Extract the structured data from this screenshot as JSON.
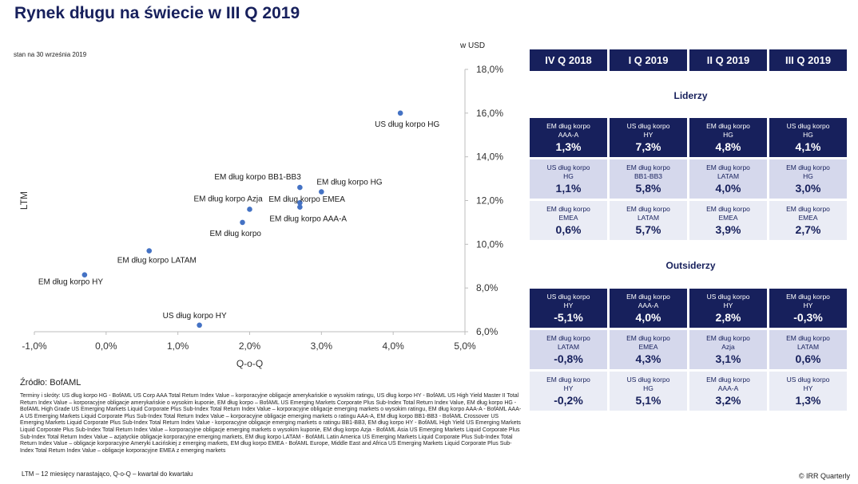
{
  "title": "Rynek długu na świecie w III Q 2019",
  "date_note": "stan na 30 września 2019",
  "unit": "w USD",
  "chart_data": {
    "type": "scatter",
    "xlabel": "Q-o-Q",
    "ylabel": "LTM",
    "xlim": [
      -1.0,
      5.0
    ],
    "ylim": [
      6.0,
      18.0
    ],
    "x_ticks": [
      "-1,0%",
      "0,0%",
      "1,0%",
      "2,0%",
      "3,0%",
      "4,0%",
      "5,0%"
    ],
    "y_ticks": [
      "6,0%",
      "8,0%",
      "10,0%",
      "12,0%",
      "14,0%",
      "16,0%",
      "18,0%"
    ],
    "grid": false,
    "points": [
      {
        "label": "US dług korpo HG",
        "x": 4.1,
        "y": 16.0
      },
      {
        "label": "EM dług korpo BB1-BB3",
        "x": 2.7,
        "y": 12.6
      },
      {
        "label": "EM dług korpo HG",
        "x": 3.0,
        "y": 12.4
      },
      {
        "label": "EM dług korpo Azja",
        "x": 2.0,
        "y": 11.6
      },
      {
        "label": "EM dług korpo EMEA",
        "x": 2.7,
        "y": 11.9
      },
      {
        "label": "EM dług korpo AAA-A",
        "x": 2.7,
        "y": 11.7
      },
      {
        "label": "EM dług korpo",
        "x": 1.9,
        "y": 11.0
      },
      {
        "label": "EM dług korpo LATAM",
        "x": 0.6,
        "y": 9.7
      },
      {
        "label": "EM dług korpo HY",
        "x": -0.3,
        "y": 8.6
      },
      {
        "label": "US dług korpo HY",
        "x": 1.3,
        "y": 6.3
      }
    ]
  },
  "source": "Źródło: BofAML",
  "terms": "Terminy i skróty: US dług korpo HG - BofAML US Corp AAA Total Return Index Value – korporacyjne obligacje amerykańskie o wysokim ratingu, US dług korpo HY - BofAML US High Yield Master II Total Return Index Value – korporacyjne obligacje amerykańskie o wysokim kuponie, EM dług korpo – BofAML US Emerging Markets Corporate Plus Sub-Index Total Return Index Value, EM dług korpo HG - BofAML High Grade US Emerging Markets Liquid Corporate Plus Sub-Index Total Return Index Value – korporacyjne obligacje emerging markets o wysokim ratingu, EM dług korpo AAA-A - BofAML AAA-A US Emerging Markets Liquid Corporate Plus Sub-Index Total Return Index Value – korporacyjne obligacje emerging markets o ratingu AAA-A, EM dług korpo BB1-BB3 - BofAML Crossover US Emerging Markets Liquid Corporate Plus Sub-Index Total Return Index Value - korporacyjne obligacje emerging markets o ratingu BB1-BB3, EM dług korpo HY - BofAML High Yield US Emerging Markets Liquid Corporate Plus Sub-Index Total Return Index Value – korporacyjne obligacje emerging markets o wysokim kuponie, EM dług korpo Azja - BofAML Asia US Emerging Markets Liquid Corporate Plus Sub-Index Total Return Index Value – azjatyckie obligacje korporacyjne emerging markets, EM dług korpo LATAM - BofAML Latin America US Emerging Markets Liquid Corporate Plus Sub-Index Total Return Index Value – obligacje korporacyjne Ameryki Łacińskiej z emerging markets, EM dług korpo EMEA - BofAML Europe, Middle East and Africa US Emerging Markets Liquid Corporate Plus Sub-Index Total Return Index Value – obligacje korporacyjne EMEA z emerging markets",
  "footnote": "LTM – 12 miesięcy narastająco, Q-o-Q – kwartał do kwartału",
  "copyright": "© IRR Quarterly",
  "quarters": [
    "IV Q 2018",
    "I Q 2019",
    "II Q 2019",
    "III Q 2019"
  ],
  "leaders": {
    "title": "Liderzy",
    "rows": [
      [
        {
          "n1": "EM dług korpo",
          "n2": "AAA-A",
          "v": "1,3%"
        },
        {
          "n1": "US dług korpo",
          "n2": "HY",
          "v": "7,3%"
        },
        {
          "n1": "EM dług korpo",
          "n2": "HG",
          "v": "4,8%"
        },
        {
          "n1": "US dług korpo",
          "n2": "HG",
          "v": "4,1%"
        }
      ],
      [
        {
          "n1": "US dług korpo",
          "n2": "HG",
          "v": "1,1%"
        },
        {
          "n1": "EM dług korpo",
          "n2": "BB1-BB3",
          "v": "5,8%"
        },
        {
          "n1": "EM dług korpo",
          "n2": "LATAM",
          "v": "4,0%"
        },
        {
          "n1": "EM dług korpo",
          "n2": "HG",
          "v": "3,0%"
        }
      ],
      [
        {
          "n1": "EM dług korpo",
          "n2": "EMEA",
          "v": "0,6%"
        },
        {
          "n1": "EM dług korpo",
          "n2": "LATAM",
          "v": "5,7%"
        },
        {
          "n1": "EM dług korpo",
          "n2": "EMEA",
          "v": "3,9%"
        },
        {
          "n1": "EM dług korpo",
          "n2": "EMEA",
          "v": "2,7%"
        }
      ]
    ]
  },
  "outsiders": {
    "title": "Outsiderzy",
    "rows": [
      [
        {
          "n1": "US dług korpo",
          "n2": "HY",
          "v": "-5,1%"
        },
        {
          "n1": "EM dług korpo",
          "n2": "AAA-A",
          "v": "4,0%"
        },
        {
          "n1": "US dług korpo",
          "n2": "HY",
          "v": "2,8%"
        },
        {
          "n1": "EM dług korpo",
          "n2": "HY",
          "v": "-0,3%"
        }
      ],
      [
        {
          "n1": "EM dług korpo",
          "n2": "LATAM",
          "v": "-0,8%"
        },
        {
          "n1": "EM dług korpo",
          "n2": "EMEA",
          "v": "4,3%"
        },
        {
          "n1": "EM dług korpo",
          "n2": "Azja",
          "v": "3,1%"
        },
        {
          "n1": "EM dług korpo",
          "n2": "LATAM",
          "v": "0,6%"
        }
      ],
      [
        {
          "n1": "EM dług korpo",
          "n2": "HY",
          "v": "-0,2%"
        },
        {
          "n1": "US dług korpo",
          "n2": "HG",
          "v": "5,1%"
        },
        {
          "n1": "EM dług korpo",
          "n2": "AAA-A",
          "v": "3,2%"
        },
        {
          "n1": "US dług korpo",
          "n2": "HY",
          "v": "1,3%"
        }
      ]
    ]
  },
  "colors": {
    "navy": "#17205c",
    "dot": "#4472c4",
    "mid": "#d5d8ec",
    "light": "#eaecf5"
  }
}
